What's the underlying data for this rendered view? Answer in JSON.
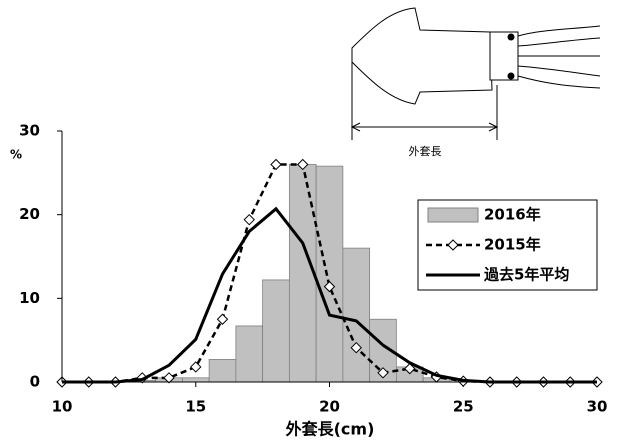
{
  "chart_data": {
    "type": "bar",
    "x": [
      10,
      11,
      12,
      13,
      14,
      15,
      16,
      17,
      18,
      19,
      20,
      21,
      22,
      23,
      24,
      25,
      26,
      27,
      28,
      29,
      30
    ],
    "series": [
      {
        "name": "2016年",
        "type": "bar",
        "color": "#c0c0c0",
        "values": [
          0,
          0,
          0,
          0.2,
          0.5,
          0.5,
          2.7,
          6.7,
          12.2,
          26,
          25.8,
          16,
          7.5,
          1.8,
          0.5,
          0,
          0,
          0,
          0,
          0,
          0
        ]
      },
      {
        "name": "2015年",
        "type": "line",
        "color": "#000000",
        "dash": true,
        "marker": "diamond",
        "values": [
          0,
          0,
          0,
          0.5,
          0.5,
          1.8,
          7.5,
          19.4,
          26,
          26,
          11.4,
          4.1,
          1.1,
          1.6,
          0.6,
          0.1,
          0,
          0,
          0,
          0,
          0
        ]
      },
      {
        "name": "過去5年平均",
        "type": "line",
        "color": "#000000",
        "dash": false,
        "values": [
          0,
          0,
          0,
          0.3,
          2,
          5.1,
          12.9,
          18,
          20.7,
          16.6,
          8,
          7.3,
          4.4,
          2.3,
          0.8,
          0.2,
          0,
          0,
          0,
          0,
          0
        ]
      }
    ],
    "xlabel": "外套長(cm)",
    "ylabel": "%",
    "xlim": [
      10,
      30
    ],
    "xticks": [
      10,
      15,
      20,
      25,
      30
    ],
    "ylim": [
      0,
      30
    ],
    "yticks": [
      0,
      10,
      20,
      30
    ],
    "grid": false,
    "legend": "right",
    "annotations": [
      "外套長"
    ]
  }
}
